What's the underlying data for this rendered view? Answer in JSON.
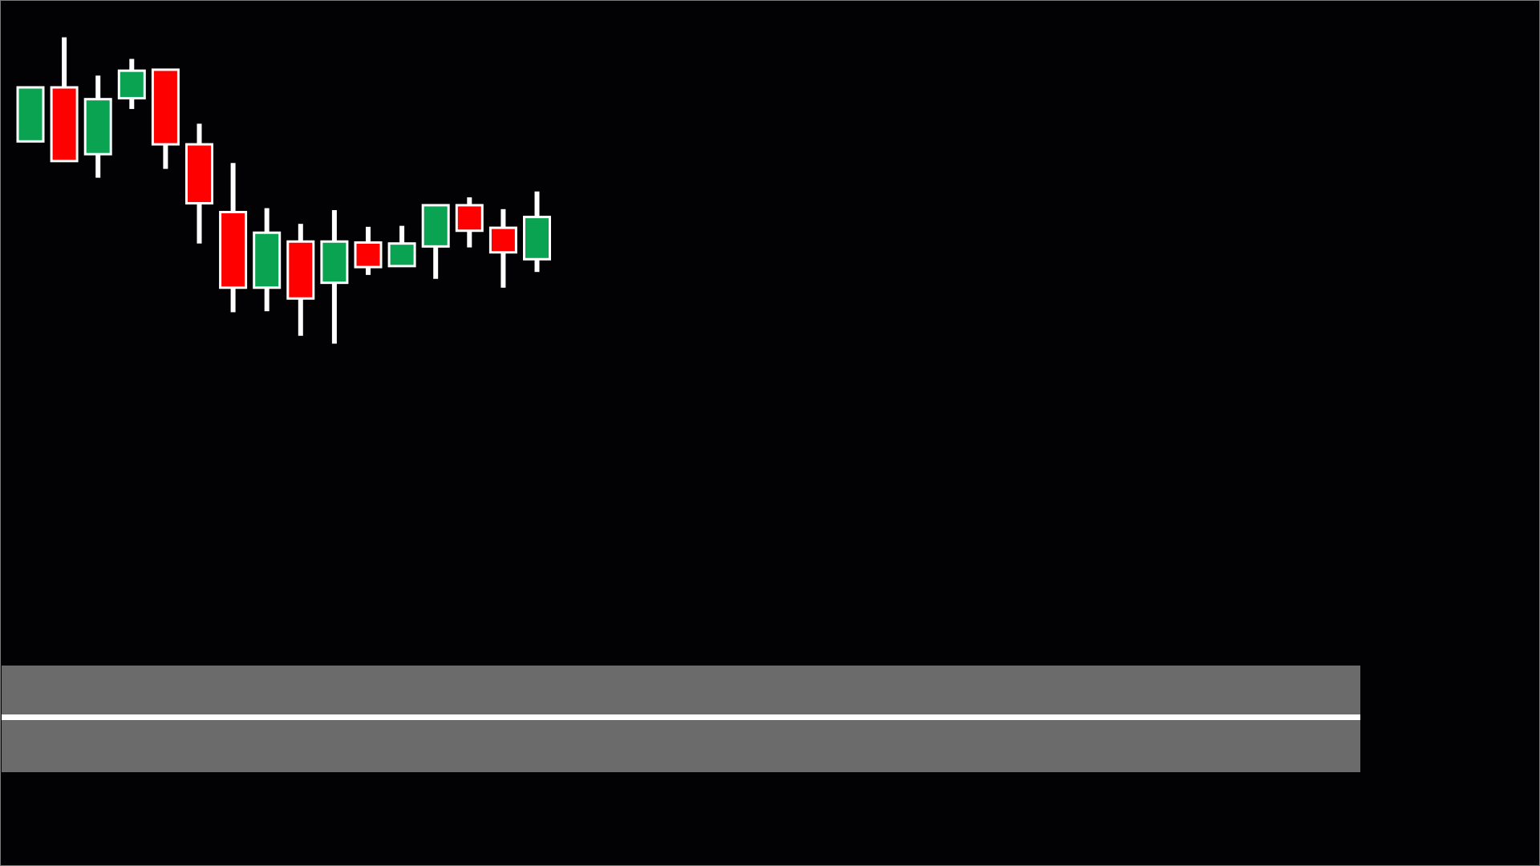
{
  "chart_data": {
    "type": "candlestick",
    "open": [
      738,
      793,
      725,
      782,
      811,
      735,
      666,
      589,
      636,
      594,
      635,
      611,
      631,
      673,
      650,
      618
    ],
    "high": [
      793,
      844,
      805,
      822,
      811,
      756,
      716,
      670,
      654,
      668,
      651,
      652,
      673,
      681,
      669,
      687
    ],
    "low": [
      738,
      718,
      701,
      771,
      710,
      634,
      564,
      565,
      540,
      532,
      602,
      611,
      598,
      630,
      589,
      605
    ],
    "close": [
      793,
      718,
      781,
      810,
      735,
      675,
      589,
      645,
      578,
      636,
      610,
      634,
      673,
      647,
      625,
      661
    ],
    "up_color": "#0aa352",
    "down_color": "#ff0000",
    "ylim": [
      0,
      882
    ]
  }
}
